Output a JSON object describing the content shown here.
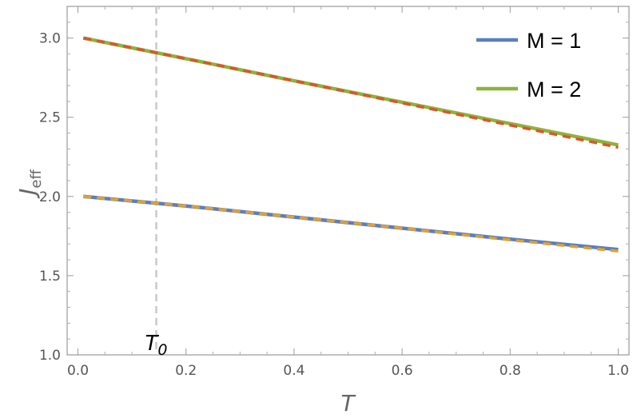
{
  "chart_data": {
    "type": "line",
    "xlabel": "T",
    "ylabel_main": "J",
    "ylabel_sub": "eff",
    "xlim": [
      -0.02,
      1.02
    ],
    "ylim": [
      1.0,
      3.2
    ],
    "x_ticks": [
      0.0,
      0.2,
      0.4,
      0.6,
      0.8,
      1.0
    ],
    "x_tick_labels": [
      "0.0",
      "0.2",
      "0.4",
      "0.6",
      "0.8",
      "1.0"
    ],
    "y_ticks": [
      1.0,
      1.5,
      2.0,
      2.5,
      3.0
    ],
    "y_tick_labels": [
      "1.0",
      "1.5",
      "2.0",
      "2.5",
      "3.0"
    ],
    "grid": false,
    "legend_position": "top-right",
    "series": [
      {
        "name": "M = 1",
        "style": "solid",
        "color": "#5b7fbf",
        "x": [
          0.01,
          0.2,
          0.4,
          0.6,
          0.8,
          1.0
        ],
        "y": [
          2.0,
          1.94,
          1.87,
          1.8,
          1.73,
          1.665
        ]
      },
      {
        "name": "M = 2",
        "style": "solid",
        "color": "#8cb43c",
        "x": [
          0.01,
          0.2,
          0.4,
          0.6,
          0.8,
          1.0
        ],
        "y": [
          3.0,
          2.87,
          2.73,
          2.595,
          2.46,
          2.325
        ]
      },
      {
        "style": "dashed",
        "color": "#e1a130",
        "x": [
          0.01,
          0.2,
          0.4,
          0.6,
          0.8,
          1.0
        ],
        "y": [
          2.0,
          1.94,
          1.87,
          1.8,
          1.725,
          1.655
        ]
      },
      {
        "style": "dashed",
        "color": "#d9562e",
        "x": [
          0.01,
          0.2,
          0.4,
          0.6,
          0.8,
          1.0
        ],
        "y": [
          3.0,
          2.87,
          2.73,
          2.59,
          2.45,
          2.31
        ]
      }
    ],
    "reference_line": {
      "x": 0.145,
      "label_main": "T",
      "label_sub": "0",
      "color": "#c8c8c8"
    }
  }
}
